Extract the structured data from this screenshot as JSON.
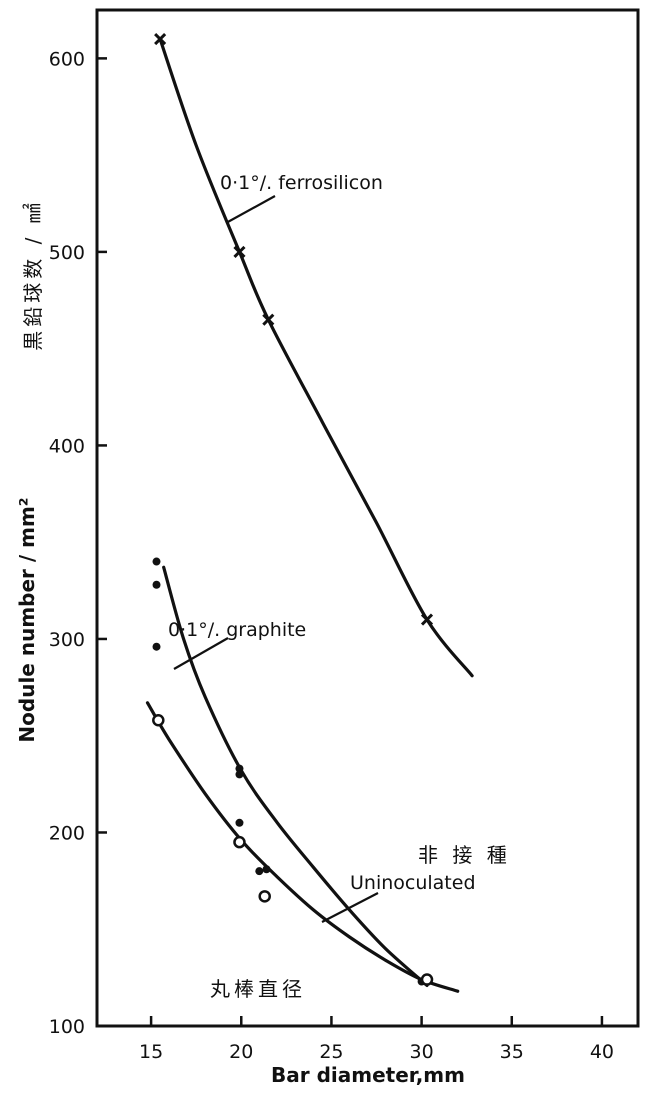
{
  "chart_data": {
    "type": "scatter",
    "xlabel": "Bar diameter,mm",
    "xlabel_jp": "丸棒直径",
    "ylabel": "Nodule number / mm²",
    "ylabel_jp": "黒鉛球数 / ㎟",
    "xlim": [
      12,
      42
    ],
    "ylim": [
      100,
      625
    ],
    "x_ticks": [
      15,
      20,
      25,
      30,
      35,
      40
    ],
    "y_ticks": [
      100,
      200,
      300,
      400,
      500,
      600
    ],
    "grid": false,
    "series": [
      {
        "name": "0·1°/. ferrosilicon",
        "marker": "cross",
        "points": [
          {
            "x": 15.5,
            "y": 610
          },
          {
            "x": 19.9,
            "y": 500
          },
          {
            "x": 21.5,
            "y": 465
          },
          {
            "x": 30.3,
            "y": 310
          }
        ],
        "curve": [
          {
            "x": 15.5,
            "y": 610
          },
          {
            "x": 17.5,
            "y": 555
          },
          {
            "x": 19.9,
            "y": 500
          },
          {
            "x": 21.5,
            "y": 465
          },
          {
            "x": 24.5,
            "y": 412
          },
          {
            "x": 27.5,
            "y": 360
          },
          {
            "x": 30.3,
            "y": 310
          },
          {
            "x": 32.8,
            "y": 281
          }
        ]
      },
      {
        "name": "0·1°/. graphite",
        "marker": "dot",
        "points": [
          {
            "x": 15.3,
            "y": 340
          },
          {
            "x": 15.3,
            "y": 328
          },
          {
            "x": 15.3,
            "y": 296
          },
          {
            "x": 19.9,
            "y": 233
          },
          {
            "x": 19.9,
            "y": 230
          },
          {
            "x": 19.9,
            "y": 205
          },
          {
            "x": 21.0,
            "y": 180
          },
          {
            "x": 21.4,
            "y": 181
          },
          {
            "x": 30.0,
            "y": 123
          }
        ],
        "curve": [
          {
            "x": 15.7,
            "y": 337
          },
          {
            "x": 16.8,
            "y": 300
          },
          {
            "x": 18.0,
            "y": 270
          },
          {
            "x": 20.0,
            "y": 232
          },
          {
            "x": 22.0,
            "y": 205
          },
          {
            "x": 24.0,
            "y": 182
          },
          {
            "x": 26.0,
            "y": 160
          },
          {
            "x": 28.0,
            "y": 140
          },
          {
            "x": 30.3,
            "y": 121
          }
        ]
      },
      {
        "name": "Uninoculated",
        "name_jp": "非 接 種",
        "marker": "circle",
        "points": [
          {
            "x": 15.4,
            "y": 258
          },
          {
            "x": 19.9,
            "y": 195
          },
          {
            "x": 21.3,
            "y": 167
          },
          {
            "x": 30.3,
            "y": 124
          }
        ],
        "curve": [
          {
            "x": 14.8,
            "y": 267
          },
          {
            "x": 16.0,
            "y": 248
          },
          {
            "x": 18.0,
            "y": 220
          },
          {
            "x": 20.0,
            "y": 196
          },
          {
            "x": 22.0,
            "y": 177
          },
          {
            "x": 24.0,
            "y": 160
          },
          {
            "x": 26.0,
            "y": 146
          },
          {
            "x": 28.0,
            "y": 134
          },
          {
            "x": 30.0,
            "y": 124
          },
          {
            "x": 32.0,
            "y": 118
          }
        ]
      }
    ]
  }
}
